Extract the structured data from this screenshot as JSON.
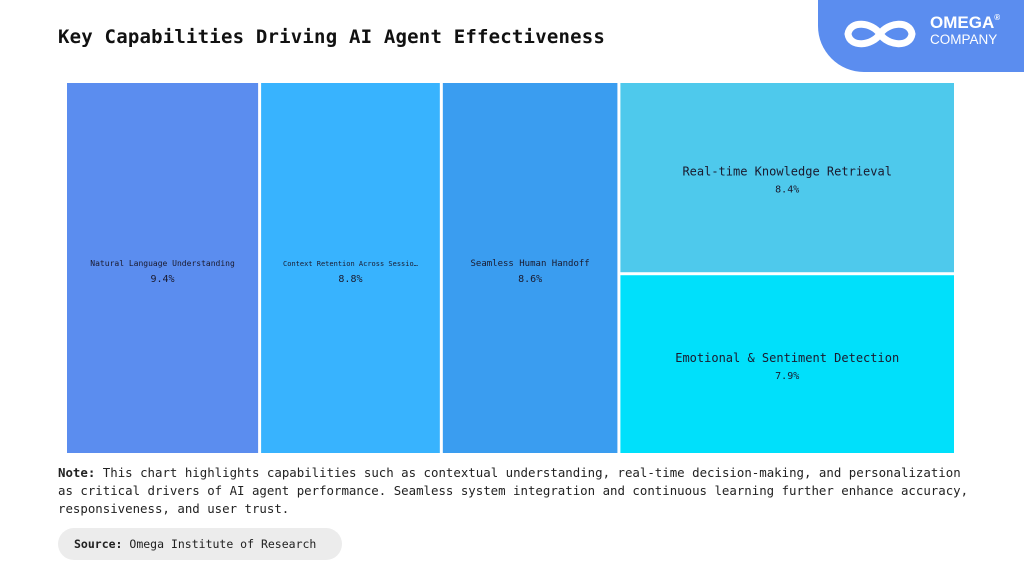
{
  "header": {
    "title": "Key Capabilities Driving AI Agent Effectiveness"
  },
  "logo": {
    "name": "OMEGA",
    "registered": "®",
    "sub": "COMPANY",
    "icon": "infinity-icon",
    "badge_color": "#5b8def"
  },
  "chart_data": {
    "type": "treemap",
    "title": "Key Capabilities Driving AI Agent Effectiveness",
    "unit": "%",
    "items": [
      {
        "label": "Natural Language Understanding",
        "display_label": "Natural Language Understanding",
        "value": 9.4,
        "value_label": "9.4%",
        "color": "#5b8def"
      },
      {
        "label": "Context Retention Across Sessions",
        "display_label": "Context Retention Across Sessio…",
        "value": 8.8,
        "value_label": "8.8%",
        "color": "#38b3fe"
      },
      {
        "label": "Seamless Human Handoff",
        "display_label": "Seamless Human Handoff",
        "value": 8.6,
        "value_label": "8.6%",
        "color": "#3a9df0"
      },
      {
        "label": "Real-time Knowledge Retrieval",
        "display_label": "Real-time Knowledge Retrieval",
        "value": 8.4,
        "value_label": "8.4%",
        "color": "#4ec9ec"
      },
      {
        "label": "Emotional & Sentiment Detection",
        "display_label": "Emotional & Sentiment Detection",
        "value": 7.9,
        "value_label": "7.9%",
        "color": "#00e0fb"
      }
    ]
  },
  "note": {
    "label": "Note:",
    "text": "This chart highlights capabilities such as contextual understanding, real-time decision-making, and personalization as critical drivers of AI agent performance. Seamless system integration and continuous learning further enhance accuracy, responsiveness, and user trust."
  },
  "source": {
    "label": "Source:",
    "text": "Omega Institute of Research"
  }
}
